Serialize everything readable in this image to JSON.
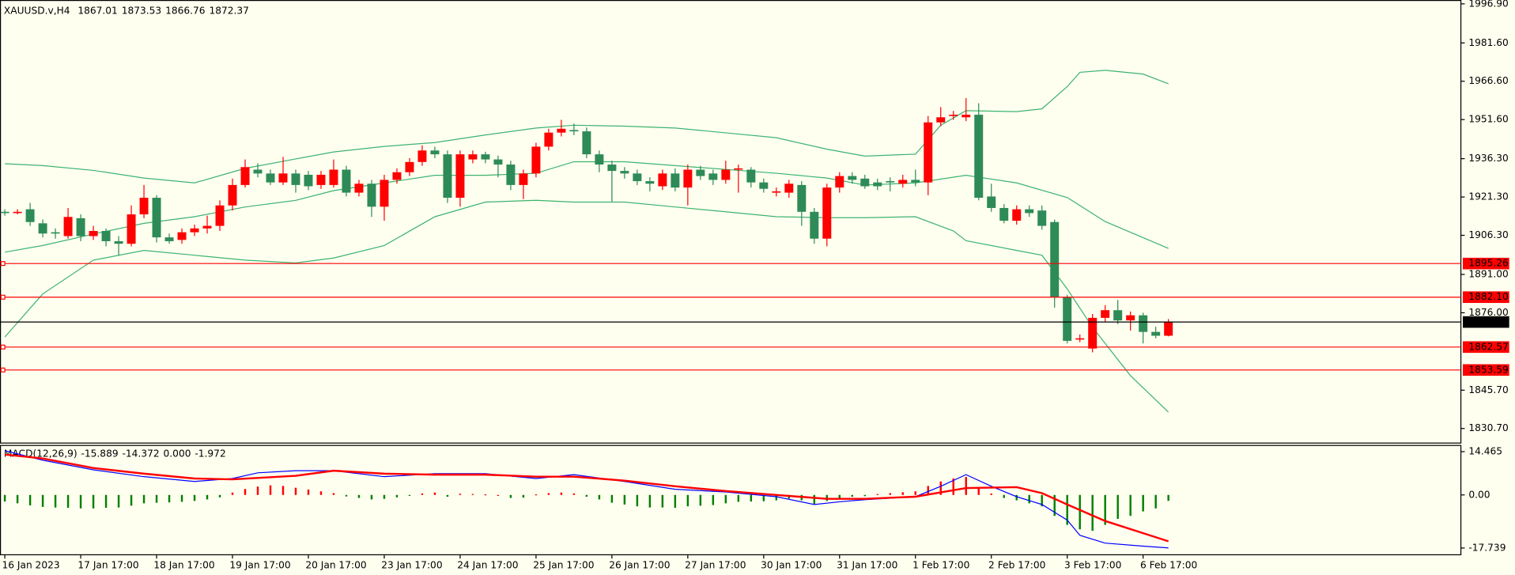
{
  "chart_data": [
    {
      "type": "candlestick",
      "title": "XAUUSD.v,H4",
      "ylim": [
        1825.0,
        1998.4
      ],
      "yticks": [
        {
          "value": 1996.9,
          "label": "1996.90"
        },
        {
          "value": 1981.6,
          "label": "1981.60"
        },
        {
          "value": 1966.6,
          "label": "1966.60"
        },
        {
          "value": 1951.6,
          "label": "1951.60"
        },
        {
          "value": 1936.3,
          "label": "1936.30"
        },
        {
          "value": 1921.3,
          "label": "1921.30"
        },
        {
          "value": 1906.3,
          "label": "1906.30"
        },
        {
          "value": 1891.0,
          "label": "1891.00"
        },
        {
          "value": 1876.0,
          "label": "1876.00"
        },
        {
          "value": 1845.7,
          "label": "1845.70"
        },
        {
          "value": 1830.7,
          "label": "1830.70"
        }
      ],
      "xticks": [
        {
          "value": 0,
          "label": "16 Jan 2023"
        },
        {
          "value": 6,
          "label": "17 Jan 17:00"
        },
        {
          "value": 12,
          "label": "18 Jan 17:00"
        },
        {
          "value": 18,
          "label": "19 Jan 17:00"
        },
        {
          "value": 24,
          "label": "20 Jan 17:00"
        },
        {
          "value": 30,
          "label": "23 Jan 17:00"
        },
        {
          "value": 36,
          "label": "24 Jan 17:00"
        },
        {
          "value": 42,
          "label": "25 Jan 17:00"
        },
        {
          "value": 48,
          "label": "26 Jan 17:00"
        },
        {
          "value": 54,
          "label": "27 Jan 17:00"
        },
        {
          "value": 60,
          "label": "30 Jan 17:00"
        },
        {
          "value": 66,
          "label": "31 Jan 17:00"
        },
        {
          "value": 72,
          "label": "1 Feb 17:00"
        },
        {
          "value": 78,
          "label": "2 Feb 17:00"
        },
        {
          "value": 84,
          "label": "3 Feb 17:00"
        },
        {
          "value": 90,
          "label": "6 Feb 17:00"
        }
      ],
      "up_color": "#ff0000",
      "down_color": "#2e8b57",
      "candles": {
        "open": [
          1915.5,
          1915.0,
          1916.5,
          1911.0,
          1907.5,
          1906.0,
          1913.0,
          1906.0,
          1908.0,
          1904.0,
          1903.0,
          1914.5,
          1921.0,
          1905.5,
          1904.5,
          1907.5,
          1909.0,
          1910.0,
          1918.0,
          1926.0,
          1932.0,
          1930.5,
          1927.0,
          1930.5,
          1930.0,
          1926.0,
          1926.0,
          1932.0,
          1923.0,
          1926.5,
          1917.5,
          1928.0,
          1931.0,
          1935.0,
          1939.5,
          1938.0,
          1921.0,
          1936.0,
          1938.0,
          1936.0,
          1934.0,
          1926.0,
          1930.5,
          1941.0,
          1946.5,
          1947.5,
          1947.0,
          1938.0,
          1934.0,
          1931.5,
          1930.5,
          1927.5,
          1925.5,
          1930.5,
          1925.0,
          1932.0,
          1930.5,
          1928.0,
          1932.0,
          1932.0,
          1927.0,
          1923.0,
          1923.0,
          1926.0,
          1915.5,
          1905.0,
          1925.0,
          1929.5,
          1928.5,
          1927.0,
          1927.5,
          1926.5,
          1928.0,
          1927.0,
          1950.5,
          1953.0,
          1952.5,
          1953.5,
          1921.5,
          1917.0,
          1912.0,
          1916.5,
          1916.0,
          1911.5,
          1882.0,
          1865.5,
          1862.0,
          1874.0,
          1877.0,
          1873.0,
          1875.0,
          1868.5,
          1867.01
        ],
        "high": [
          1916.5,
          1916.5,
          1919.0,
          1912.5,
          1909.0,
          1917.0,
          1914.5,
          1910.0,
          1909.0,
          1906.0,
          1918.0,
          1926.0,
          1922.0,
          1907.0,
          1909.0,
          1910.5,
          1914.0,
          1920.0,
          1928.5,
          1936.0,
          1934.5,
          1932.0,
          1937.0,
          1932.0,
          1931.5,
          1931.5,
          1936.0,
          1933.5,
          1928.0,
          1928.0,
          1930.0,
          1932.5,
          1936.5,
          1941.5,
          1941.0,
          1939.5,
          1939.5,
          1939.5,
          1939.0,
          1937.5,
          1935.5,
          1932.0,
          1942.5,
          1948.0,
          1951.5,
          1950.0,
          1948.5,
          1939.5,
          1935.5,
          1933.0,
          1932.0,
          1929.0,
          1932.0,
          1932.5,
          1934.0,
          1933.5,
          1932.0,
          1935.5,
          1934.0,
          1933.0,
          1928.5,
          1925.0,
          1928.0,
          1927.5,
          1917.0,
          1926.5,
          1931.0,
          1931.0,
          1930.0,
          1928.5,
          1929.0,
          1930.0,
          1932.0,
          1953.0,
          1956.5,
          1955.0,
          1960.0,
          1958.0,
          1926.5,
          1918.5,
          1918.0,
          1918.0,
          1918.0,
          1912.5,
          1883.0,
          1867.5,
          1875.5,
          1879.0,
          1881.0,
          1876.5,
          1876.0,
          1870.5,
          1873.53
        ],
        "low": [
          1914.0,
          1914.5,
          1910.0,
          1905.5,
          1905.0,
          1905.0,
          1904.0,
          1904.5,
          1902.0,
          1898.5,
          1902.0,
          1913.0,
          1903.5,
          1903.0,
          1903.0,
          1906.0,
          1907.0,
          1908.0,
          1916.0,
          1925.0,
          1929.0,
          1926.0,
          1926.0,
          1923.0,
          1924.0,
          1924.5,
          1925.0,
          1921.5,
          1921.5,
          1913.5,
          1912.0,
          1926.5,
          1929.5,
          1933.5,
          1936.5,
          1919.0,
          1917.5,
          1934.5,
          1934.5,
          1929.0,
          1924.0,
          1920.5,
          1929.0,
          1939.5,
          1945.0,
          1945.5,
          1936.5,
          1931.0,
          1919.5,
          1928.5,
          1926.0,
          1923.5,
          1924.0,
          1923.5,
          1918.0,
          1928.0,
          1926.0,
          1926.5,
          1923.0,
          1925.0,
          1923.0,
          1921.5,
          1921.0,
          1910.0,
          1903.0,
          1902.0,
          1923.0,
          1926.5,
          1924.5,
          1924.0,
          1923.5,
          1925.0,
          1925.5,
          1922.0,
          1949.0,
          1951.5,
          1951.0,
          1920.0,
          1915.5,
          1911.0,
          1910.5,
          1913.5,
          1908.5,
          1878.0,
          1864.0,
          1864.5,
          1860.5,
          1872.5,
          1871.5,
          1869.0,
          1864.0,
          1866.0,
          1866.76
        ],
        "close": [
          1915.0,
          1915.5,
          1911.5,
          1907.0,
          1907.0,
          1913.5,
          1906.0,
          1908.0,
          1904.0,
          1903.0,
          1914.5,
          1921.0,
          1905.5,
          1904.0,
          1907.5,
          1909.0,
          1910.0,
          1918.0,
          1926.0,
          1933.0,
          1930.5,
          1927.0,
          1930.5,
          1926.0,
          1925.5,
          1930.0,
          1932.0,
          1923.0,
          1926.5,
          1917.5,
          1928.0,
          1931.0,
          1935.0,
          1939.5,
          1938.0,
          1921.0,
          1938.0,
          1938.0,
          1936.0,
          1934.0,
          1926.0,
          1930.5,
          1941.0,
          1946.5,
          1948.0,
          1947.0,
          1938.0,
          1934.0,
          1931.5,
          1930.5,
          1927.5,
          1926.5,
          1930.5,
          1925.0,
          1932.0,
          1929.5,
          1928.0,
          1932.0,
          1932.5,
          1927.0,
          1924.5,
          1923.5,
          1926.5,
          1915.5,
          1905.0,
          1925.0,
          1929.5,
          1928.0,
          1925.5,
          1925.5,
          1927.0,
          1928.0,
          1927.0,
          1950.5,
          1952.5,
          1953.5,
          1953.5,
          1921.0,
          1917.0,
          1912.0,
          1916.5,
          1915.0,
          1910.0,
          1882.0,
          1865.0,
          1866.0,
          1874.0,
          1877.0,
          1873.0,
          1875.0,
          1868.5,
          1867.0,
          1872.37
        ]
      },
      "bands": [
        {
          "color": "#3cb371",
          "x": [
            0,
            3,
            7,
            11,
            15,
            19,
            23,
            26,
            30,
            34,
            38,
            42,
            45,
            49,
            53,
            57,
            61,
            65,
            68,
            72,
            74,
            76,
            80,
            82,
            84,
            85,
            87,
            90,
            92
          ],
          "values": [
            1934.3,
            1933.6,
            1931.7,
            1928.7,
            1926.8,
            1932.5,
            1936.2,
            1938.9,
            1941.1,
            1942.6,
            1945.6,
            1948.3,
            1949.4,
            1949.0,
            1948.3,
            1946.4,
            1944.5,
            1940.0,
            1937.3,
            1938.1,
            1949.4,
            1955.1,
            1954.7,
            1955.8,
            1964.5,
            1970.1,
            1970.9,
            1969.4,
            1965.6
          ]
        },
        {
          "color": "#3cb371",
          "x": [
            0,
            3,
            7,
            11,
            15,
            19,
            23,
            26,
            30,
            34,
            38,
            42,
            45,
            49,
            53,
            57,
            61,
            65,
            68,
            72,
            76,
            80,
            84,
            87,
            92
          ],
          "values": [
            1899.7,
            1902.3,
            1906.8,
            1911.0,
            1913.6,
            1917.4,
            1920.0,
            1923.8,
            1926.8,
            1929.8,
            1929.8,
            1930.6,
            1935.1,
            1935.1,
            1933.6,
            1932.1,
            1930.6,
            1928.7,
            1926.0,
            1926.8,
            1929.8,
            1926.8,
            1921.1,
            1911.7,
            1901.2
          ]
        },
        {
          "color": "#3cb371",
          "x": [
            0,
            3,
            7,
            11,
            15,
            19,
            23,
            26,
            30,
            34,
            38,
            42,
            45,
            49,
            53,
            57,
            61,
            65,
            68,
            72,
            75,
            76,
            80,
            82,
            84,
            86,
            89,
            92
          ],
          "values": [
            1866.5,
            1883.4,
            1896.6,
            1900.4,
            1898.5,
            1896.6,
            1895.5,
            1897.4,
            1902.3,
            1913.6,
            1919.3,
            1920.0,
            1919.3,
            1919.3,
            1917.4,
            1915.5,
            1913.6,
            1913.2,
            1913.2,
            1913.6,
            1908.0,
            1904.2,
            1900.4,
            1898.5,
            1885.3,
            1870.3,
            1851.4,
            1837.1
          ]
        }
      ],
      "levels": [
        {
          "value": 1895.26,
          "label": "1895.26",
          "color": "#ff0000"
        },
        {
          "value": 1882.1,
          "label": "1882.10",
          "color": "#ff0000"
        },
        {
          "value": 1862.57,
          "label": "1862.57",
          "color": "#ff0000"
        },
        {
          "value": 1853.59,
          "label": "1853.59",
          "color": "#ff0000"
        }
      ],
      "bid_color": "#000000"
    },
    {
      "type": "macd",
      "title": "MACD(12,26,9)",
      "readout": [
        -15.889,
        -14.372,
        {
          "value": 0,
          "label": "0.000"
        }
      ],
      "ylim": [
        -20.0,
        16.7
      ],
      "yticks": [
        14.465,
        {
          "value": 0,
          "label": "0.00"
        },
        -17.739
      ],
      "histogram": {
        "up_color": "#ff0000",
        "down_color": "#008000",
        "values": [
          -2.2,
          -2.8,
          -3.5,
          -4.0,
          -4.2,
          -4.3,
          -4.5,
          -4.5,
          -4.3,
          -4.2,
          -3.6,
          -2.8,
          -2.6,
          -2.5,
          -2.3,
          -2.0,
          -1.5,
          -0.8,
          0.8,
          2.0,
          2.8,
          3.2,
          3.0,
          2.4,
          1.8,
          1.2,
          0.6,
          -0.5,
          -1.0,
          -1.5,
          -1.3,
          -0.8,
          -0.2,
          0.5,
          0.8,
          -0.6,
          0.4,
          0.3,
          0.2,
          0.0,
          -1.0,
          -0.9,
          0.2,
          0.6,
          0.8,
          0.5,
          -0.6,
          -1.5,
          -2.6,
          -3.2,
          -3.8,
          -4.2,
          -4.2,
          -4.3,
          -3.8,
          -3.6,
          -3.4,
          -2.8,
          -2.3,
          -2.2,
          -2.1,
          -1.8,
          -1.2,
          -1.8,
          -3.0,
          -2.0,
          -1.2,
          -0.6,
          -0.4,
          0.3,
          0.6,
          0.9,
          1.2,
          3.0,
          4.5,
          5.5,
          6.0,
          2.5,
          0.5,
          -1.0,
          -1.8,
          -2.8,
          -3.8,
          -7.0,
          -10.0,
          -11.5,
          -12.0,
          -10.0,
          -8.0,
          -7.0,
          -5.5,
          -4.5,
          -1.972
        ]
      },
      "series": [
        {
          "color": "#0000ff",
          "width": 1,
          "x": [
            0,
            3,
            7,
            11,
            15,
            18,
            20,
            23,
            26,
            30,
            34,
            38,
            42,
            45,
            49,
            53,
            57,
            61,
            64,
            66,
            68,
            72,
            74,
            76,
            78,
            80,
            82,
            84,
            85,
            87,
            90,
            92
          ],
          "values": [
            14.8,
            11.6,
            8.4,
            6.1,
            4.5,
            5.5,
            7.4,
            8.1,
            8.1,
            6.1,
            7.1,
            7.1,
            5.5,
            6.8,
            4.5,
            1.9,
            1.0,
            -0.6,
            -3.2,
            -2.3,
            -1.6,
            -0.6,
            2.9,
            6.8,
            2.9,
            -0.6,
            -3.2,
            -8.4,
            -13.5,
            -16.1,
            -17.1,
            -17.7
          ]
        },
        {
          "color": "#ff0000",
          "width": 2,
          "x": [
            0,
            3,
            7,
            11,
            15,
            18,
            23,
            26,
            30,
            34,
            38,
            42,
            45,
            49,
            53,
            57,
            61,
            65,
            68,
            72,
            76,
            80,
            82,
            84,
            87,
            92
          ],
          "values": [
            13.5,
            12.2,
            9.0,
            7.1,
            5.5,
            5.2,
            6.4,
            8.1,
            7.1,
            6.8,
            6.8,
            6.1,
            6.1,
            4.8,
            2.9,
            1.3,
            0.0,
            -1.3,
            -1.3,
            -0.6,
            2.3,
            2.6,
            0.6,
            -3.2,
            -8.7,
            -15.5
          ]
        }
      ]
    }
  ]
}
